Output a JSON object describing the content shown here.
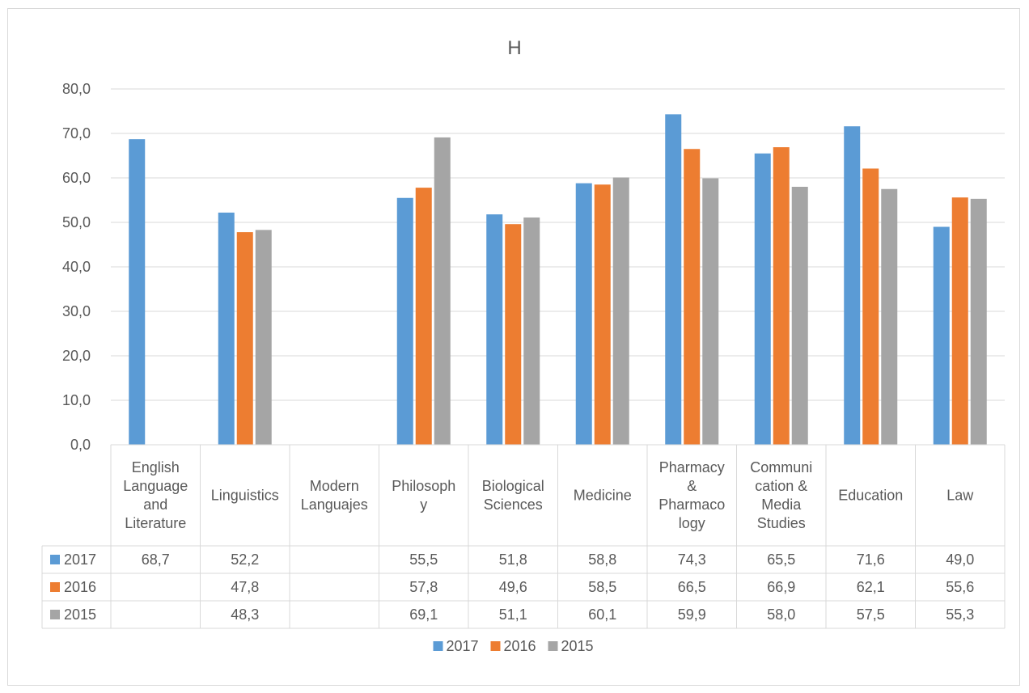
{
  "chart_data": {
    "type": "bar",
    "title": "H",
    "categories": [
      [
        "English",
        "Language",
        "and",
        "Literature"
      ],
      [
        "Linguistics"
      ],
      [
        "Modern",
        "Languajes"
      ],
      [
        "Philosoph",
        "y"
      ],
      [
        "Biological",
        "Sciences"
      ],
      [
        "Medicine"
      ],
      [
        "Pharmacy",
        "&",
        "Pharmaco",
        "logy"
      ],
      [
        "Communi",
        "cation &",
        "Media",
        "Studies"
      ],
      [
        "Education"
      ],
      [
        "Law"
      ]
    ],
    "series": [
      {
        "name": "2017",
        "color": "#5b9bd5",
        "values": [
          68.7,
          52.2,
          null,
          55.5,
          51.8,
          58.8,
          74.3,
          65.5,
          71.6,
          49.0
        ],
        "labels": [
          "68,7",
          "52,2",
          "",
          "55,5",
          "51,8",
          "58,8",
          "74,3",
          "65,5",
          "71,6",
          "49,0"
        ]
      },
      {
        "name": "2016",
        "color": "#ed7d31",
        "values": [
          null,
          47.8,
          null,
          57.8,
          49.6,
          58.5,
          66.5,
          66.9,
          62.1,
          55.6
        ],
        "labels": [
          "",
          "47,8",
          "",
          "57,8",
          "49,6",
          "58,5",
          "66,5",
          "66,9",
          "62,1",
          "55,6"
        ]
      },
      {
        "name": "2015",
        "color": "#a5a5a5",
        "values": [
          null,
          48.3,
          null,
          69.1,
          51.1,
          60.1,
          59.9,
          58.0,
          57.5,
          55.3
        ],
        "labels": [
          "",
          "48,3",
          "",
          "69,1",
          "51,1",
          "60,1",
          "59,9",
          "58,0",
          "57,5",
          "55,3"
        ]
      }
    ],
    "ylim": [
      0,
      80
    ],
    "yticks": [
      "0,0",
      "10,0",
      "20,0",
      "30,0",
      "40,0",
      "50,0",
      "60,0",
      "70,0",
      "80,0"
    ],
    "grid": true,
    "data_table": true,
    "legend_position": "bottom"
  }
}
